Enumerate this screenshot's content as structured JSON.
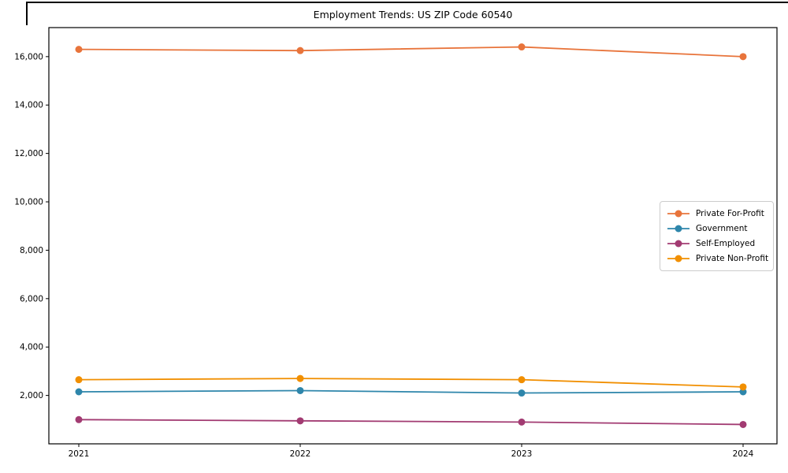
{
  "chart_data": {
    "type": "line",
    "title": "Employment Trends: US ZIP Code 60540",
    "categories": [
      "2021",
      "2022",
      "2023",
      "2024"
    ],
    "series": [
      {
        "name": "Private For-Profit",
        "color": "#E8743B",
        "values": [
          16300,
          16250,
          16400,
          16000
        ]
      },
      {
        "name": "Government",
        "color": "#2E86AB",
        "values": [
          2150,
          2200,
          2100,
          2150
        ]
      },
      {
        "name": "Self-Employed",
        "color": "#A23B72",
        "values": [
          1000,
          950,
          900,
          800
        ]
      },
      {
        "name": "Private Non-Profit",
        "color": "#F18F01",
        "values": [
          2650,
          2700,
          2650,
          2350
        ]
      }
    ],
    "xlabel": "",
    "ylabel": "",
    "ylim": [
      0,
      17200
    ],
    "yticks": [
      2000,
      4000,
      6000,
      8000,
      10000,
      12000,
      14000,
      16000
    ],
    "ytick_labels": [
      "2,000",
      "4,000",
      "6,000",
      "8,000",
      "10,000",
      "12,000",
      "14,000",
      "16,000"
    ],
    "grid": false,
    "marker": "filled-circle",
    "legend_position": "center-right",
    "axis_color": "#000000"
  }
}
